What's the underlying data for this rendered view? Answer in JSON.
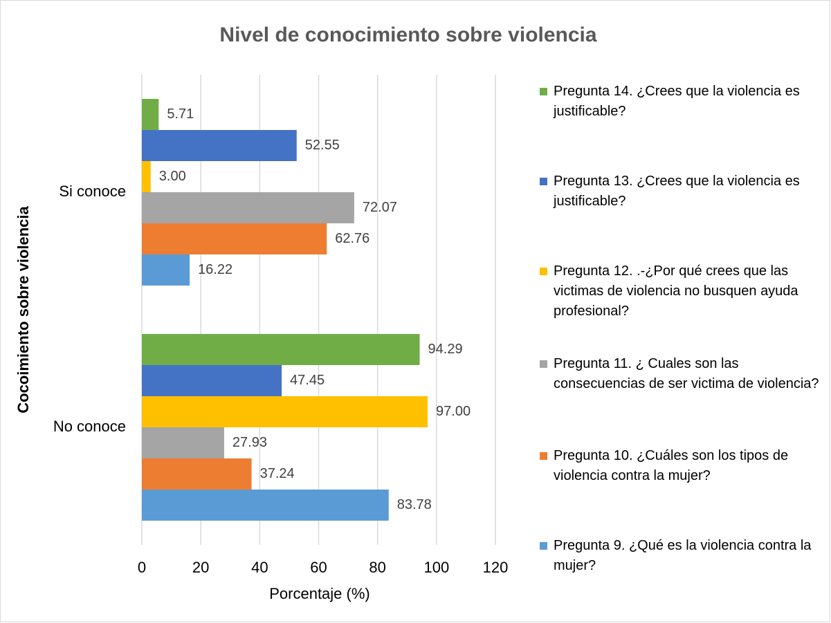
{
  "chart_data": {
    "type": "hbar",
    "title": "Nivel de conocimiento sobre violencia",
    "x_label": "Porcentaje (%)",
    "y_label": "Cocoimiento sobre violencia",
    "categories": [
      "Si conoce",
      "No conoce"
    ],
    "series": [
      {
        "name": "Pregunta 14. ¿Crees que la violencia es justificable?",
        "color": "#70ad47",
        "values": [
          5.71,
          94.29
        ],
        "value_labels": [
          "5.71",
          "94.29"
        ]
      },
      {
        "name": "Pregunta 13. ¿Crees que la violencia es justificable?",
        "color": "#4472c4",
        "values": [
          52.55,
          47.45
        ],
        "value_labels": [
          "52.55",
          "47.45"
        ]
      },
      {
        "name": "Pregunta 12. .-¿Por qué crees que las victimas de violencia no busquen ayuda profesional?",
        "color": "#ffc000",
        "values": [
          3,
          97
        ],
        "value_labels": [
          "3.00",
          "97.00"
        ]
      },
      {
        "name": "Pregunta 11. ¿ Cuales son las consecuencias de ser victima de violencia?",
        "color": "#a5a5a5",
        "values": [
          72.07,
          27.93
        ],
        "value_labels": [
          "72.07",
          "27.93"
        ]
      },
      {
        "name": "Pregunta 10. ¿Cuáles son los tipos de violencia contra la mujer?",
        "color": "#ed7d31",
        "values": [
          62.76,
          37.24
        ],
        "value_labels": [
          "62.76",
          "37.24"
        ]
      },
      {
        "name": "Pregunta 9. ¿Qué es la violencia contra la mujer?",
        "color": "#5b9bd5",
        "values": [
          16.22,
          83.78
        ],
        "value_labels": [
          "16.22",
          "83.78"
        ]
      }
    ],
    "xlim": [
      0,
      120
    ],
    "xticks": [
      0,
      20,
      40,
      60,
      80,
      100,
      120
    ],
    "grid": true,
    "legend": "right"
  }
}
